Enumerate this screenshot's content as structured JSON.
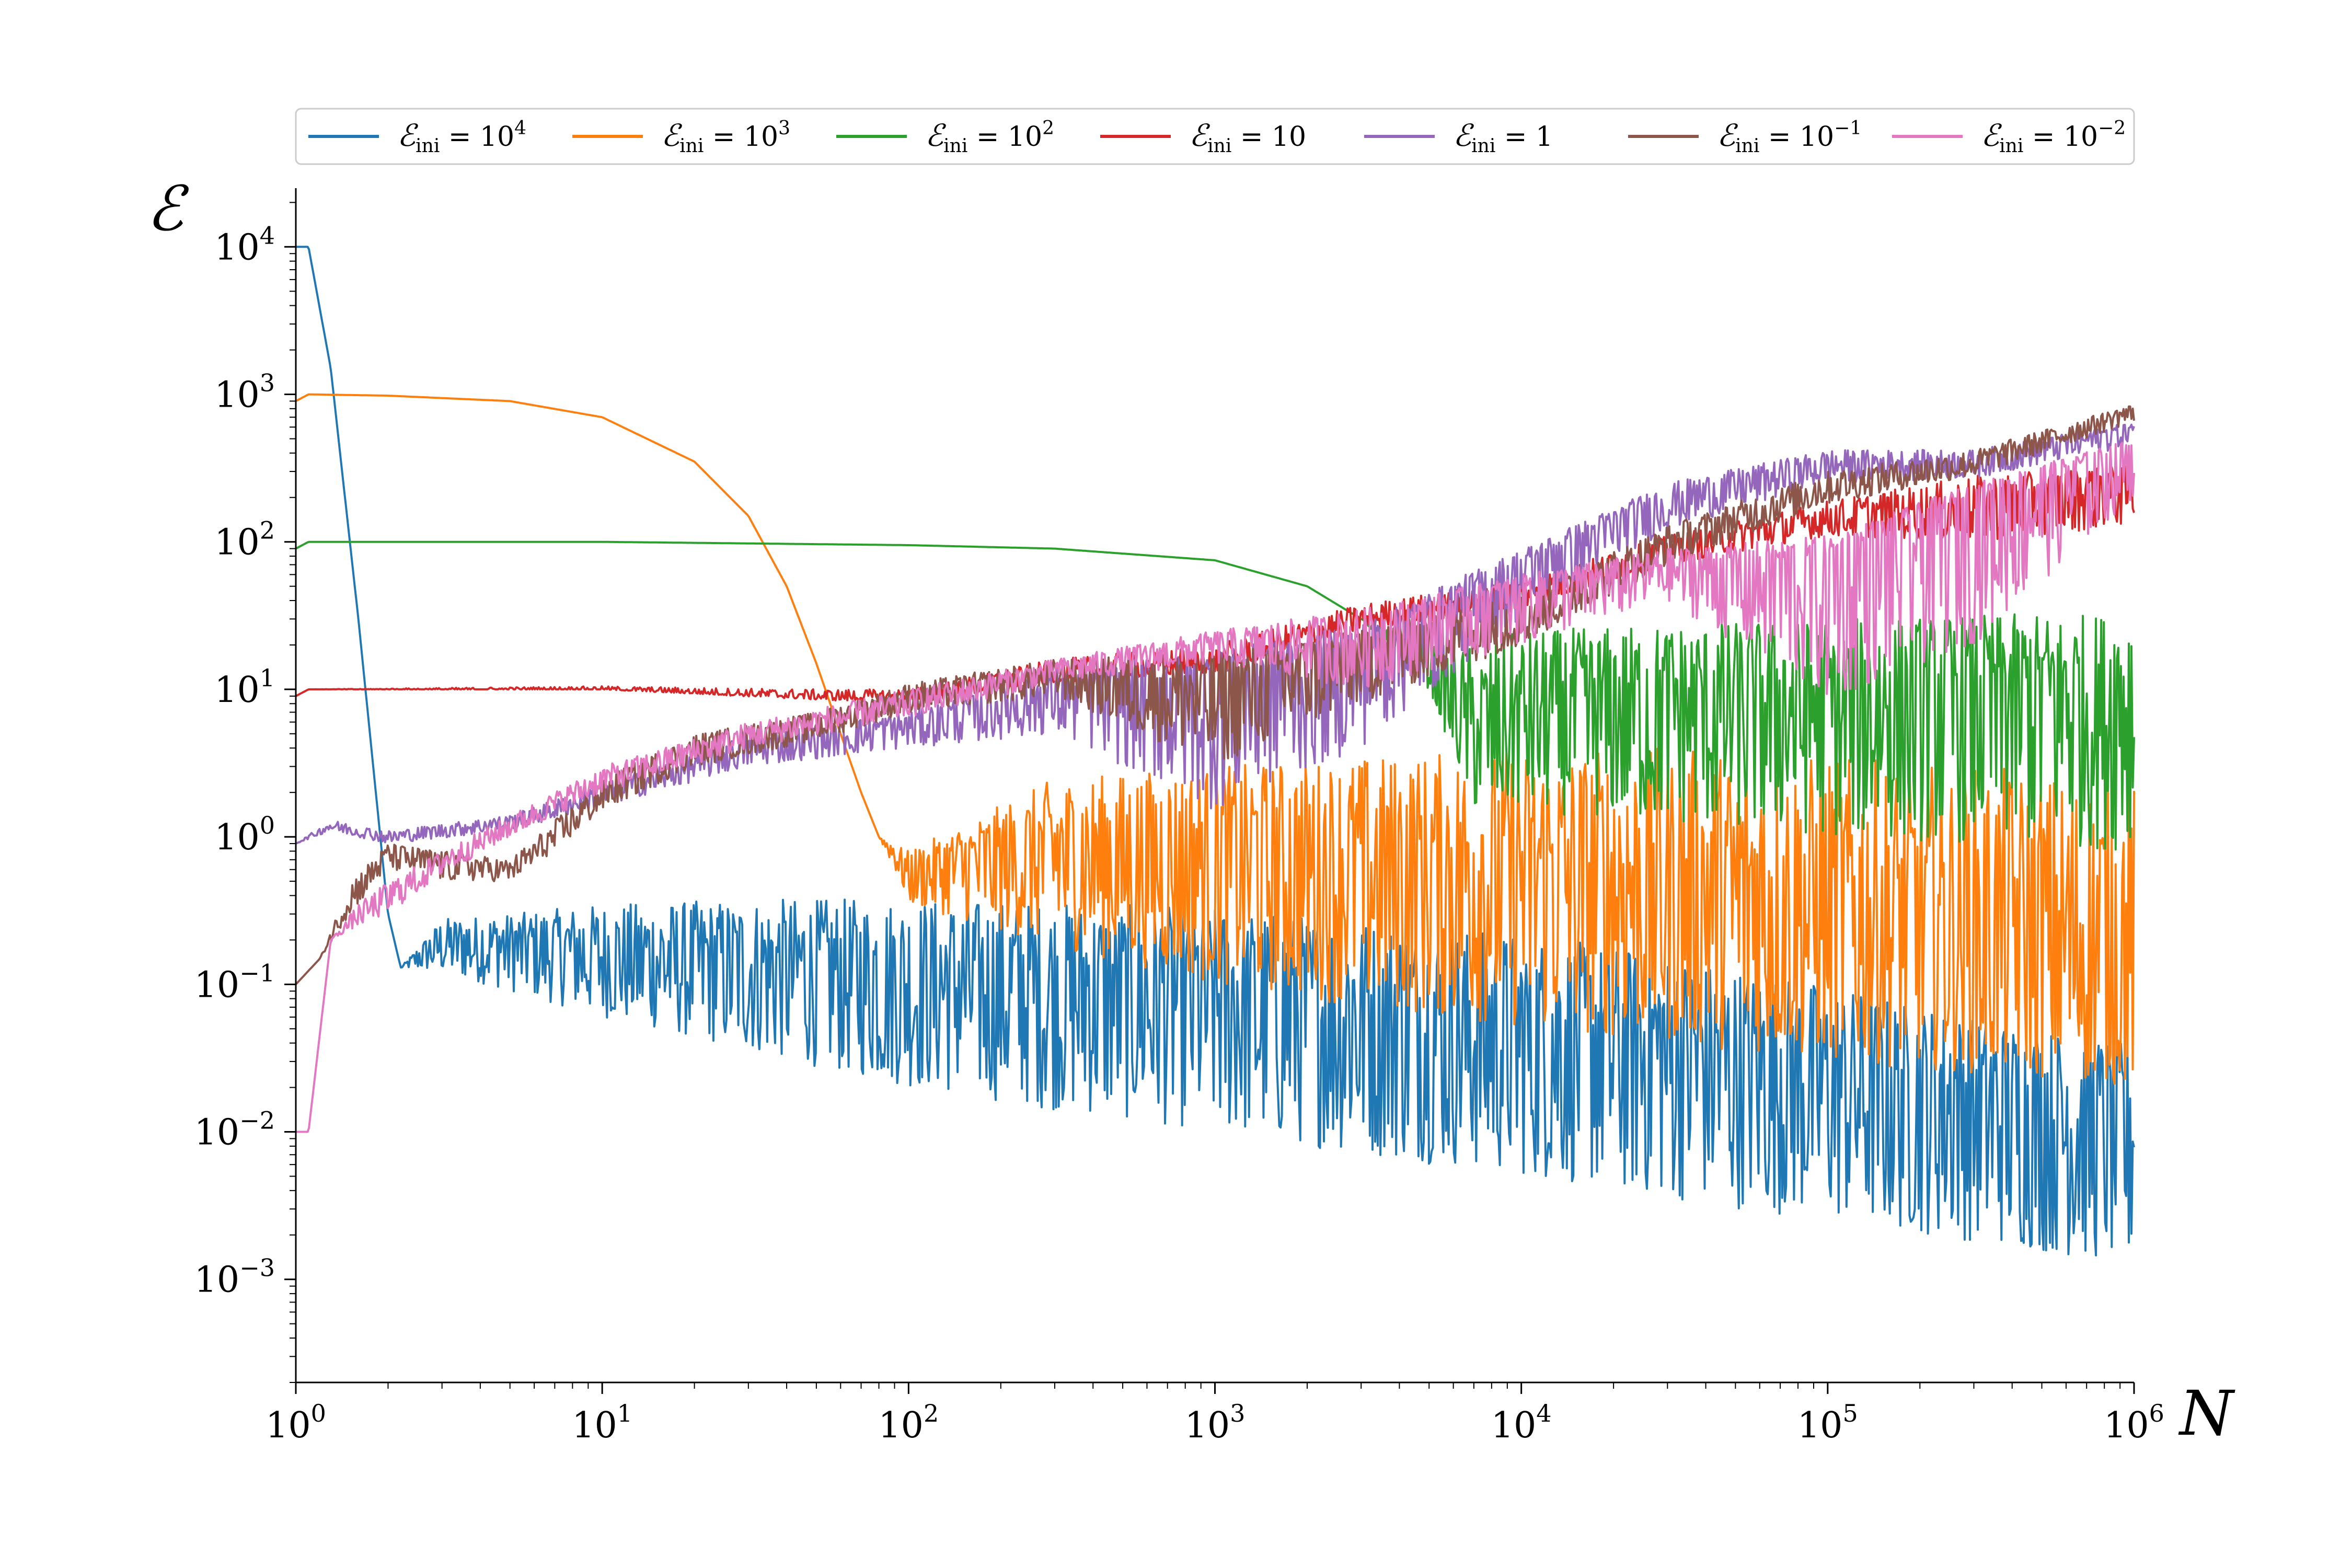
{
  "chart_data": {
    "type": "line",
    "title": "",
    "xlabel": "N",
    "ylabel": "ℰ",
    "xscale": "log",
    "yscale": "log",
    "xlim": [
      1,
      1000000
    ],
    "ylim": [
      0.0002,
      25000
    ],
    "grid": false,
    "legend_position": "top (above plot, single row)",
    "x_ticks": [
      {
        "base": "10",
        "exp": "0"
      },
      {
        "base": "10",
        "exp": "1"
      },
      {
        "base": "10",
        "exp": "2"
      },
      {
        "base": "10",
        "exp": "3"
      },
      {
        "base": "10",
        "exp": "4"
      },
      {
        "base": "10",
        "exp": "5"
      },
      {
        "base": "10",
        "exp": "6"
      }
    ],
    "x_tick_values": [
      1,
      10,
      100,
      1000,
      10000,
      100000,
      1000000
    ],
    "y_ticks": [
      {
        "base": "10",
        "exp": "4"
      },
      {
        "base": "10",
        "exp": "3"
      },
      {
        "base": "10",
        "exp": "2"
      },
      {
        "base": "10",
        "exp": "1"
      },
      {
        "base": "10",
        "exp": "0"
      },
      {
        "base": "10",
        "exp": "−1"
      },
      {
        "base": "10",
        "exp": "−2"
      },
      {
        "base": "10",
        "exp": "−3"
      }
    ],
    "y_tick_values": [
      10000,
      1000,
      100,
      10,
      1,
      0.1,
      0.01,
      0.001
    ],
    "series": [
      {
        "name": "ℰini = 10⁴",
        "legend": {
          "lhs": "ℰ",
          "sub": "ini",
          "rhs": "= 10",
          "sup": "4"
        },
        "color": "#1f77b4",
        "x": [
          1,
          1.1,
          1.3,
          1.6,
          2,
          2.2,
          3,
          5,
          10,
          30,
          100,
          300,
          1000,
          3000,
          10000,
          30000,
          100000,
          300000,
          1000000
        ],
        "y": [
          10000,
          10000,
          1500,
          30,
          0.3,
          0.13,
          0.2,
          0.2,
          0.18,
          0.15,
          0.13,
          0.12,
          0.1,
          0.08,
          0.06,
          0.045,
          0.03,
          0.02,
          0.015
        ],
        "band_low": [
          10000,
          10000,
          1500,
          30,
          0.3,
          0.13,
          0.12,
          0.09,
          0.06,
          0.035,
          0.02,
          0.014,
          0.01,
          0.007,
          0.005,
          0.0035,
          0.0025,
          0.0018,
          0.0012
        ],
        "band_high": [
          10000,
          10000,
          1500,
          30,
          0.3,
          0.13,
          0.28,
          0.3,
          0.35,
          0.38,
          0.38,
          0.36,
          0.33,
          0.28,
          0.22,
          0.16,
          0.1,
          0.06,
          0.04
        ]
      },
      {
        "name": "ℰini = 10³",
        "legend": {
          "lhs": "ℰ",
          "sub": "ini",
          "rhs": "= 10",
          "sup": "3"
        },
        "color": "#ff7f0e",
        "x": [
          1,
          1.1,
          2,
          5,
          10,
          20,
          30,
          40,
          50,
          60,
          70,
          80,
          90,
          100,
          300,
          1000,
          3000,
          10000,
          30000,
          100000,
          300000,
          1000000
        ],
        "y": [
          900,
          1000,
          980,
          900,
          700,
          350,
          150,
          50,
          15,
          5,
          2,
          1,
          0.8,
          0.6,
          0.9,
          1,
          0.8,
          0.7,
          0.6,
          0.4,
          0.3,
          0.2
        ],
        "band_low": [
          900,
          1000,
          980,
          900,
          700,
          350,
          150,
          50,
          15,
          5,
          2,
          1,
          0.6,
          0.35,
          0.18,
          0.1,
          0.07,
          0.05,
          0.04,
          0.03,
          0.025,
          0.02
        ],
        "band_high": [
          900,
          1000,
          980,
          900,
          700,
          350,
          150,
          50,
          15,
          5,
          2,
          1,
          0.9,
          0.8,
          2.5,
          3,
          3.5,
          4,
          4,
          3.5,
          3,
          2.5
        ]
      },
      {
        "name": "ℰini = 10²",
        "legend": {
          "lhs": "ℰ",
          "sub": "ini",
          "rhs": "= 10",
          "sup": "2"
        },
        "color": "#2ca02c",
        "x": [
          1,
          1.1,
          10,
          100,
          300,
          1000,
          2000,
          3000,
          5000,
          7000,
          10000,
          30000,
          100000,
          300000,
          1000000
        ],
        "y": [
          90,
          100,
          100,
          95,
          90,
          75,
          50,
          30,
          15,
          5,
          8,
          10,
          10,
          12,
          12
        ],
        "band_low": [
          90,
          100,
          100,
          95,
          90,
          75,
          50,
          30,
          10,
          1.5,
          1.5,
          1.2,
          1,
          0.9,
          0.8
        ],
        "band_high": [
          90,
          100,
          100,
          95,
          90,
          75,
          50,
          30,
          20,
          20,
          25,
          28,
          30,
          32,
          33
        ]
      },
      {
        "name": "ℰini = 10",
        "legend": {
          "lhs": "ℰ",
          "sub": "ini",
          "rhs": "= 10",
          "sup": ""
        },
        "color": "#d62728",
        "x": [
          1,
          1.1,
          10,
          50,
          100,
          300,
          1000,
          3000,
          10000,
          30000,
          100000,
          300000,
          1000000
        ],
        "y": [
          9,
          10,
          10,
          9,
          9,
          13,
          15,
          30,
          45,
          90,
          150,
          180,
          280
        ],
        "band_low": [
          9,
          10,
          10,
          8.5,
          8,
          11,
          13,
          25,
          35,
          70,
          110,
          100,
          130
        ],
        "band_high": [
          9,
          10,
          10.5,
          10,
          10,
          16,
          20,
          38,
          55,
          110,
          190,
          280,
          330
        ]
      },
      {
        "name": "ℰini = 1",
        "legend": {
          "lhs": "ℰ",
          "sub": "ini",
          "rhs": "= 1",
          "sup": ""
        },
        "color": "#9467bd",
        "x": [
          1,
          1.3,
          2,
          5,
          10,
          30,
          100,
          300,
          1000,
          3000,
          10000,
          30000,
          100000,
          300000,
          1000000
        ],
        "y": [
          0.9,
          1.2,
          1.0,
          1.3,
          2.0,
          4,
          6,
          10,
          12,
          20,
          70,
          200,
          350,
          350,
          600
        ],
        "band_low": [
          0.9,
          1.1,
          0.9,
          1.1,
          1.6,
          3,
          4,
          5,
          1.5,
          4,
          30,
          120,
          250,
          270,
          450
        ],
        "band_high": [
          0.9,
          1.3,
          1.1,
          1.4,
          2.3,
          5,
          7,
          14,
          18,
          28,
          90,
          250,
          420,
          420,
          650
        ]
      },
      {
        "name": "ℰini = 10⁻¹",
        "legend": {
          "lhs": "ℰ",
          "sub": "ini",
          "rhs": "= 10",
          "sup": "−1"
        },
        "color": "#8c564b",
        "x": [
          1,
          1.2,
          1.5,
          2,
          3,
          5,
          7,
          10,
          20,
          50,
          100,
          300,
          1000,
          3000,
          10000,
          30000,
          100000,
          300000,
          1000000
        ],
        "y": [
          0.1,
          0.15,
          0.4,
          0.8,
          0.7,
          0.6,
          1.0,
          2,
          4,
          6,
          9,
          13,
          10,
          20,
          30,
          100,
          250,
          350,
          800
        ],
        "band_low": [
          0.1,
          0.15,
          0.3,
          0.6,
          0.5,
          0.5,
          0.8,
          1.5,
          3,
          4.5,
          7,
          9,
          3,
          8,
          20,
          70,
          180,
          280,
          650
        ],
        "band_high": [
          0.1,
          0.15,
          0.5,
          0.9,
          0.8,
          0.7,
          1.3,
          2.5,
          5,
          7,
          11,
          16,
          18,
          25,
          45,
          130,
          300,
          420,
          860
        ]
      },
      {
        "name": "ℰini = 10⁻²",
        "legend": {
          "lhs": "ℰ",
          "sub": "ini",
          "rhs": "= 10",
          "sup": "−2"
        },
        "color": "#e377c2",
        "x": [
          1,
          1.1,
          1.3,
          1.6,
          2,
          3,
          5,
          10,
          30,
          100,
          300,
          1000,
          3000,
          10000,
          30000,
          100000,
          300000,
          1000000
        ],
        "y": [
          0.01,
          0.01,
          0.2,
          0.3,
          0.4,
          0.7,
          1.2,
          2.5,
          5,
          8,
          14,
          20,
          25,
          50,
          70,
          80,
          200,
          450
        ],
        "band_low": [
          0.01,
          0.01,
          0.2,
          0.25,
          0.3,
          0.55,
          1.0,
          2.0,
          4,
          6.5,
          11,
          15,
          10,
          20,
          40,
          8,
          20,
          200
        ],
        "band_high": [
          0.01,
          0.01,
          0.2,
          0.35,
          0.5,
          0.8,
          1.4,
          3.0,
          6,
          10,
          16,
          25,
          35,
          60,
          90,
          110,
          250,
          500
        ]
      }
    ]
  }
}
